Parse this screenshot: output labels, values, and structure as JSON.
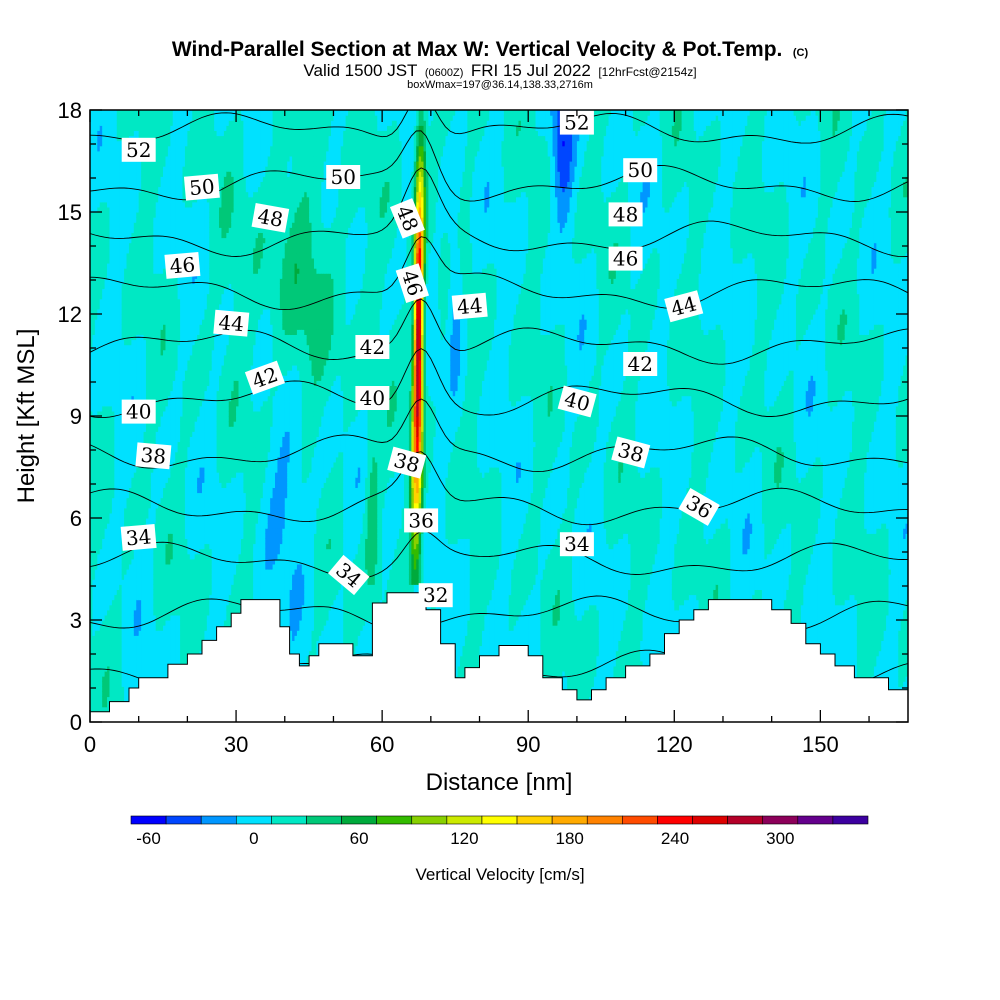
{
  "chart_data": {
    "type": "heatmap",
    "title": "Wind-Parallel Section at Max W: Vertical Velocity & Pot.Temp.",
    "title_mark": "(C)",
    "subtitle_parts": [
      "Valid 1500 JST",
      "(0600Z)",
      "FRI 15 Jul 2022",
      "[12hrFcst@2154z]"
    ],
    "subtitle2": "boxWmax=197@36.14,138.33,2716m",
    "xlabel": "Distance [nm]",
    "ylabel": "Height [Kft MSL]",
    "xlim": [
      0,
      168
    ],
    "ylim": [
      0,
      18
    ],
    "xticks": [
      0,
      30,
      60,
      90,
      120,
      150
    ],
    "yticks": [
      0,
      3,
      6,
      9,
      12,
      15,
      18
    ],
    "colorbar": {
      "label": "Vertical Velocity [cm/s]",
      "ticks": [
        -60,
        0,
        60,
        120,
        180,
        240,
        300
      ],
      "levels": [
        -70,
        -50,
        -30,
        -10,
        10,
        30,
        50,
        70,
        90,
        110,
        130,
        150,
        170,
        190,
        210,
        230,
        250,
        270,
        290,
        310,
        330,
        350
      ],
      "colors": [
        "#0000ff",
        "#0046ff",
        "#0096ff",
        "#00e1ff",
        "#00e8c4",
        "#00c878",
        "#00aa3c",
        "#33bb00",
        "#88d000",
        "#ccea00",
        "#ffff00",
        "#ffd200",
        "#ffaa00",
        "#ff8200",
        "#ff4b00",
        "#ff0000",
        "#dd0000",
        "#b40028",
        "#8c005a",
        "#64008c",
        "#3c00a0"
      ]
    },
    "terrain": [
      [
        0,
        0.3
      ],
      [
        4,
        0.3
      ],
      [
        4,
        0.6
      ],
      [
        8,
        0.6
      ],
      [
        8,
        1.0
      ],
      [
        10,
        1.0
      ],
      [
        10,
        1.3
      ],
      [
        16,
        1.3
      ],
      [
        16,
        1.7
      ],
      [
        20,
        1.7
      ],
      [
        20,
        2.0
      ],
      [
        23,
        2.0
      ],
      [
        23,
        2.4
      ],
      [
        26,
        2.4
      ],
      [
        26,
        2.8
      ],
      [
        29,
        2.8
      ],
      [
        29,
        3.2
      ],
      [
        31,
        3.2
      ],
      [
        31,
        3.6
      ],
      [
        39,
        3.6
      ],
      [
        39,
        2.8
      ],
      [
        41,
        2.8
      ],
      [
        41,
        2.0
      ],
      [
        43,
        2.0
      ],
      [
        43,
        1.65
      ],
      [
        45,
        1.65
      ],
      [
        45,
        1.95
      ],
      [
        47,
        1.95
      ],
      [
        47,
        2.3
      ],
      [
        54,
        2.3
      ],
      [
        54,
        1.95
      ],
      [
        58,
        1.95
      ],
      [
        58,
        3.5
      ],
      [
        61,
        3.5
      ],
      [
        61,
        3.8
      ],
      [
        69,
        3.8
      ],
      [
        69,
        3.3
      ],
      [
        72,
        3.3
      ],
      [
        72,
        2.3
      ],
      [
        75,
        2.3
      ],
      [
        75,
        1.3
      ],
      [
        77,
        1.3
      ],
      [
        77,
        1.6
      ],
      [
        80,
        1.6
      ],
      [
        80,
        1.95
      ],
      [
        84,
        1.95
      ],
      [
        84,
        2.25
      ],
      [
        90,
        2.25
      ],
      [
        90,
        1.95
      ],
      [
        93,
        1.95
      ],
      [
        93,
        1.3
      ],
      [
        97,
        1.3
      ],
      [
        97,
        0.95
      ],
      [
        100,
        0.95
      ],
      [
        100,
        0.65
      ],
      [
        103,
        0.65
      ],
      [
        103,
        0.95
      ],
      [
        106,
        0.95
      ],
      [
        106,
        1.3
      ],
      [
        110,
        1.3
      ],
      [
        110,
        1.65
      ],
      [
        115,
        1.65
      ],
      [
        115,
        2.0
      ],
      [
        118,
        2.0
      ],
      [
        118,
        2.6
      ],
      [
        121,
        2.6
      ],
      [
        121,
        3.0
      ],
      [
        124,
        3.0
      ],
      [
        124,
        3.3
      ],
      [
        127,
        3.3
      ],
      [
        127,
        3.6
      ],
      [
        140,
        3.6
      ],
      [
        140,
        3.3
      ],
      [
        144,
        3.3
      ],
      [
        144,
        2.9
      ],
      [
        147,
        2.9
      ],
      [
        147,
        2.3
      ],
      [
        150,
        2.3
      ],
      [
        150,
        2.0
      ],
      [
        153,
        2.0
      ],
      [
        153,
        1.65
      ],
      [
        157,
        1.65
      ],
      [
        157,
        1.3
      ],
      [
        164,
        1.3
      ],
      [
        164,
        0.95
      ],
      [
        168,
        0.95
      ]
    ],
    "contour_levels": [
      30,
      32,
      34,
      36,
      38,
      40,
      42,
      44,
      46,
      48,
      50,
      52,
      54
    ],
    "contour_labels": [
      {
        "text": "52",
        "x": 10,
        "y": 16.8,
        "angle": 0
      },
      {
        "text": "50",
        "x": 23,
        "y": 15.7,
        "angle": -5
      },
      {
        "text": "50",
        "x": 52,
        "y": 16.0,
        "angle": 0
      },
      {
        "text": "48",
        "x": 37,
        "y": 14.8,
        "angle": 10
      },
      {
        "text": "48",
        "x": 65,
        "y": 14.8,
        "angle": 68
      },
      {
        "text": "46",
        "x": 19,
        "y": 13.4,
        "angle": -5
      },
      {
        "text": "46",
        "x": 66,
        "y": 12.9,
        "angle": 72
      },
      {
        "text": "44",
        "x": 29,
        "y": 11.7,
        "angle": 5
      },
      {
        "text": "44",
        "x": 78,
        "y": 12.2,
        "angle": -5
      },
      {
        "text": "42",
        "x": 58,
        "y": 11.0,
        "angle": 0
      },
      {
        "text": "42",
        "x": 36,
        "y": 10.1,
        "angle": -20
      },
      {
        "text": "40",
        "x": 10,
        "y": 9.1,
        "angle": 0
      },
      {
        "text": "40",
        "x": 58,
        "y": 9.5,
        "angle": 0
      },
      {
        "text": "38",
        "x": 13,
        "y": 7.8,
        "angle": 5
      },
      {
        "text": "38",
        "x": 65,
        "y": 7.6,
        "angle": 15
      },
      {
        "text": "36",
        "x": 68,
        "y": 5.9,
        "angle": 0
      },
      {
        "text": "34",
        "x": 10,
        "y": 5.4,
        "angle": -5
      },
      {
        "text": "34",
        "x": 53,
        "y": 4.3,
        "angle": 40
      },
      {
        "text": "32",
        "x": 71,
        "y": 3.7,
        "angle": 0
      },
      {
        "text": "52",
        "x": 100,
        "y": 17.6,
        "angle": 0
      },
      {
        "text": "50",
        "x": 113,
        "y": 16.2,
        "angle": 0
      },
      {
        "text": "48",
        "x": 110,
        "y": 14.9,
        "angle": 0
      },
      {
        "text": "46",
        "x": 110,
        "y": 13.6,
        "angle": 0
      },
      {
        "text": "44",
        "x": 122,
        "y": 12.2,
        "angle": -15
      },
      {
        "text": "42",
        "x": 113,
        "y": 10.5,
        "angle": 0
      },
      {
        "text": "40",
        "x": 100,
        "y": 9.4,
        "angle": 15
      },
      {
        "text": "38",
        "x": 111,
        "y": 7.9,
        "angle": 15
      },
      {
        "text": "36",
        "x": 125,
        "y": 6.3,
        "angle": 30
      },
      {
        "text": "34",
        "x": 100,
        "y": 5.2,
        "angle": 0
      }
    ]
  }
}
